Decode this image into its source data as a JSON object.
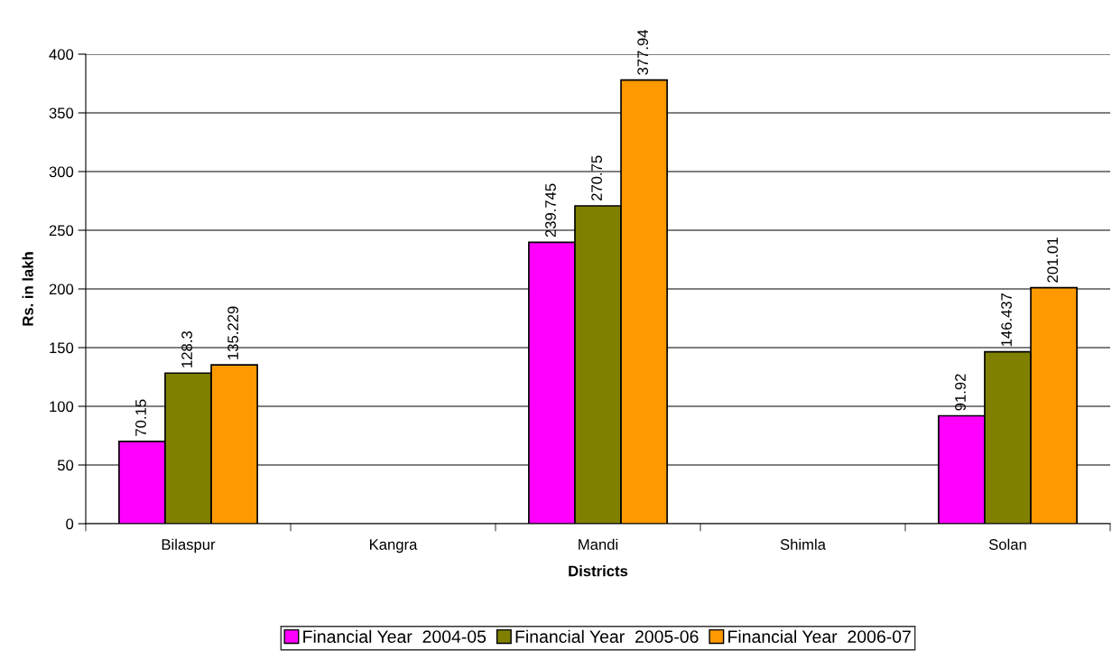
{
  "chart_data": {
    "type": "bar",
    "xlabel": "Districts",
    "ylabel": "Rs. in lakh",
    "categories": [
      "Bilaspur",
      "Kangra",
      "Mandi",
      "Shimla",
      "Solan"
    ],
    "series": [
      {
        "name": "Financial Year  2004-05",
        "color": "#ff00ff",
        "values": [
          70.15,
          null,
          239.745,
          null,
          91.92
        ]
      },
      {
        "name": "Financial Year  2005-06",
        "color": "#808000",
        "values": [
          128.3,
          null,
          270.75,
          null,
          146.437
        ]
      },
      {
        "name": "Financial Year  2006-07",
        "color": "#ff9900",
        "values": [
          135.229,
          null,
          377.94,
          null,
          201.01
        ]
      }
    ],
    "ylim": [
      0,
      400
    ],
    "yticks": [
      0,
      50,
      100,
      150,
      200,
      250,
      300,
      350,
      400
    ],
    "grid": "y",
    "legend": "bottom",
    "data_labels": true
  }
}
